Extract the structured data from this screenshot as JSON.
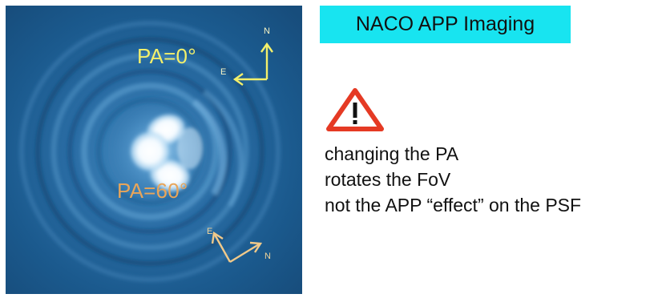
{
  "image_panel": {
    "labels": {
      "pa_top": "PA=0°",
      "pa_bottom": "PA=60°"
    },
    "compass_top": {
      "north": "N",
      "east": "E"
    },
    "compass_bottom": {
      "north": "N",
      "east": "E"
    },
    "colors": {
      "pa_top": "#f3f06b",
      "pa_bottom": "#e8a55a",
      "background": "#1b5a8e"
    }
  },
  "title": {
    "text": "NACO APP Imaging",
    "background": "#18e4f0"
  },
  "warning": {
    "icon": "warning-triangle-icon",
    "lines": [
      "changing the PA",
      "rotates the FoV",
      "not the APP “effect” on the PSF"
    ]
  }
}
